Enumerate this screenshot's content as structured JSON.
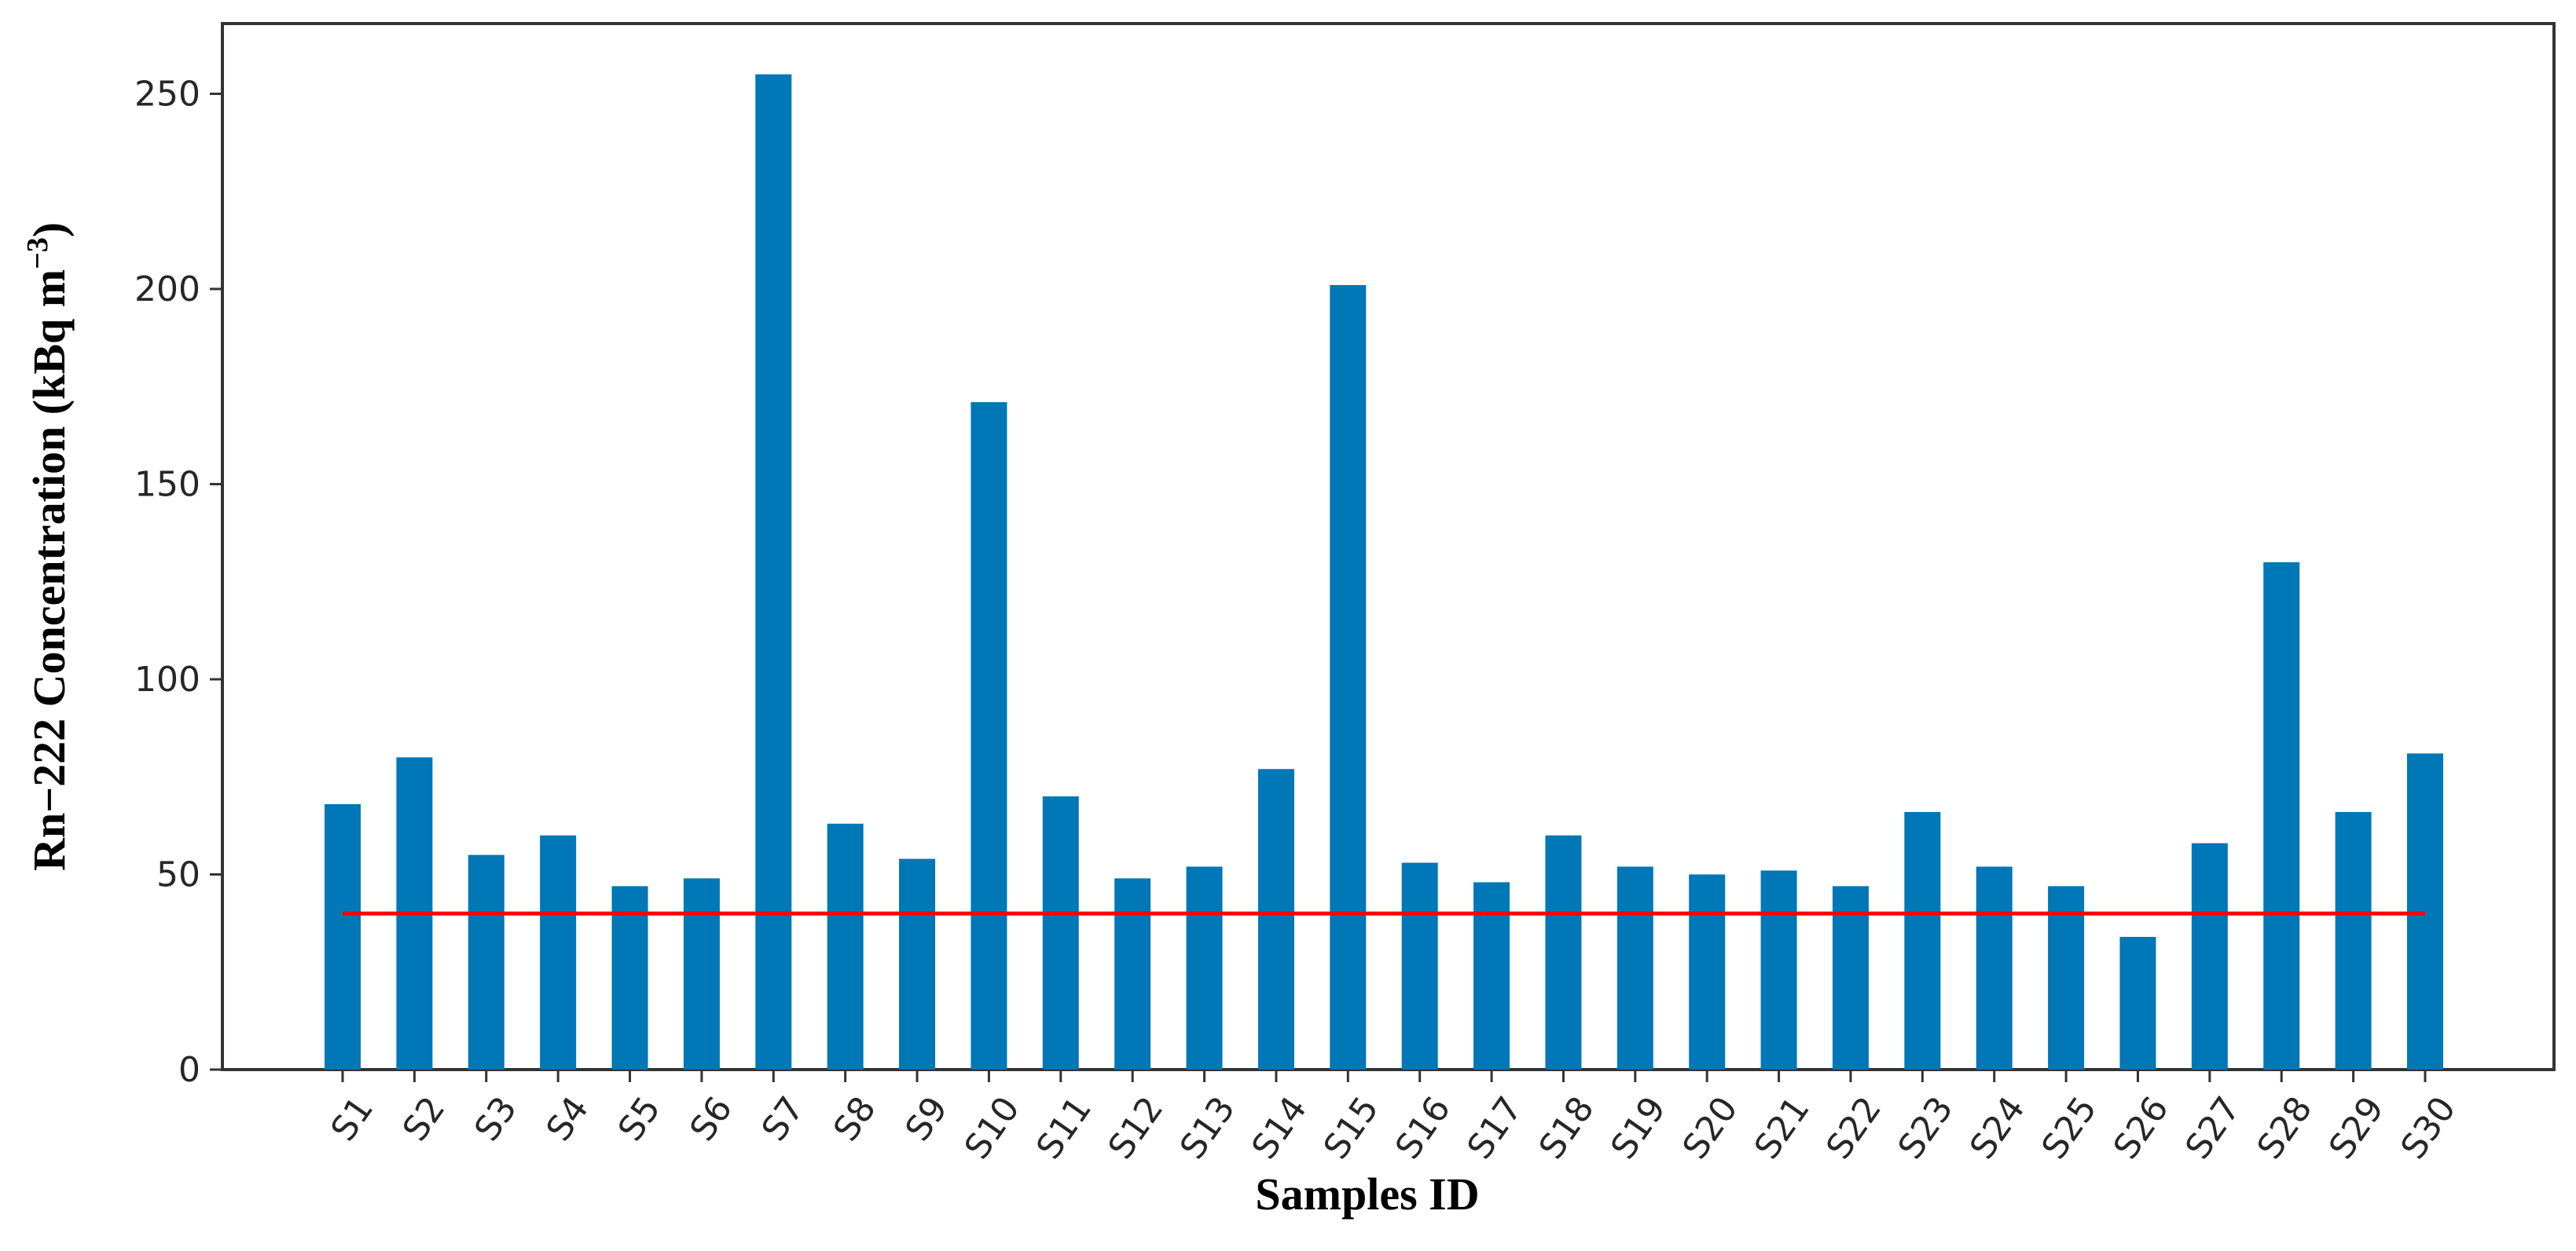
{
  "chart_data": {
    "type": "bar",
    "title": "",
    "xlabel": "Samples ID",
    "ylabel": "Rn−222 Concentration (kBq m",
    "ylabel_sup": "−3",
    "ylabel_end": ")",
    "categories": [
      "S1",
      "S2",
      "S3",
      "S4",
      "S5",
      "S6",
      "S7",
      "S8",
      "S9",
      "S10",
      "S11",
      "S12",
      "S13",
      "S14",
      "S15",
      "S16",
      "S17",
      "S18",
      "S19",
      "S20",
      "S21",
      "S22",
      "S23",
      "S24",
      "S25",
      "S26",
      "S27",
      "S28",
      "S29",
      "S30"
    ],
    "values": [
      68,
      80,
      55,
      60,
      47,
      49,
      255,
      63,
      54,
      171,
      70,
      49,
      52,
      77,
      201,
      53,
      48,
      60,
      52,
      50,
      51,
      47,
      66,
      52,
      47,
      34,
      58,
      130,
      66,
      81
    ],
    "ylim": [
      0,
      268
    ],
    "yticks": [
      "0",
      "50",
      "100",
      "150",
      "200",
      "250"
    ],
    "reference_line": {
      "y": 40,
      "color": "#ff0000"
    },
    "bar_color": "#0077b6",
    "grid": false,
    "legend": "none"
  }
}
